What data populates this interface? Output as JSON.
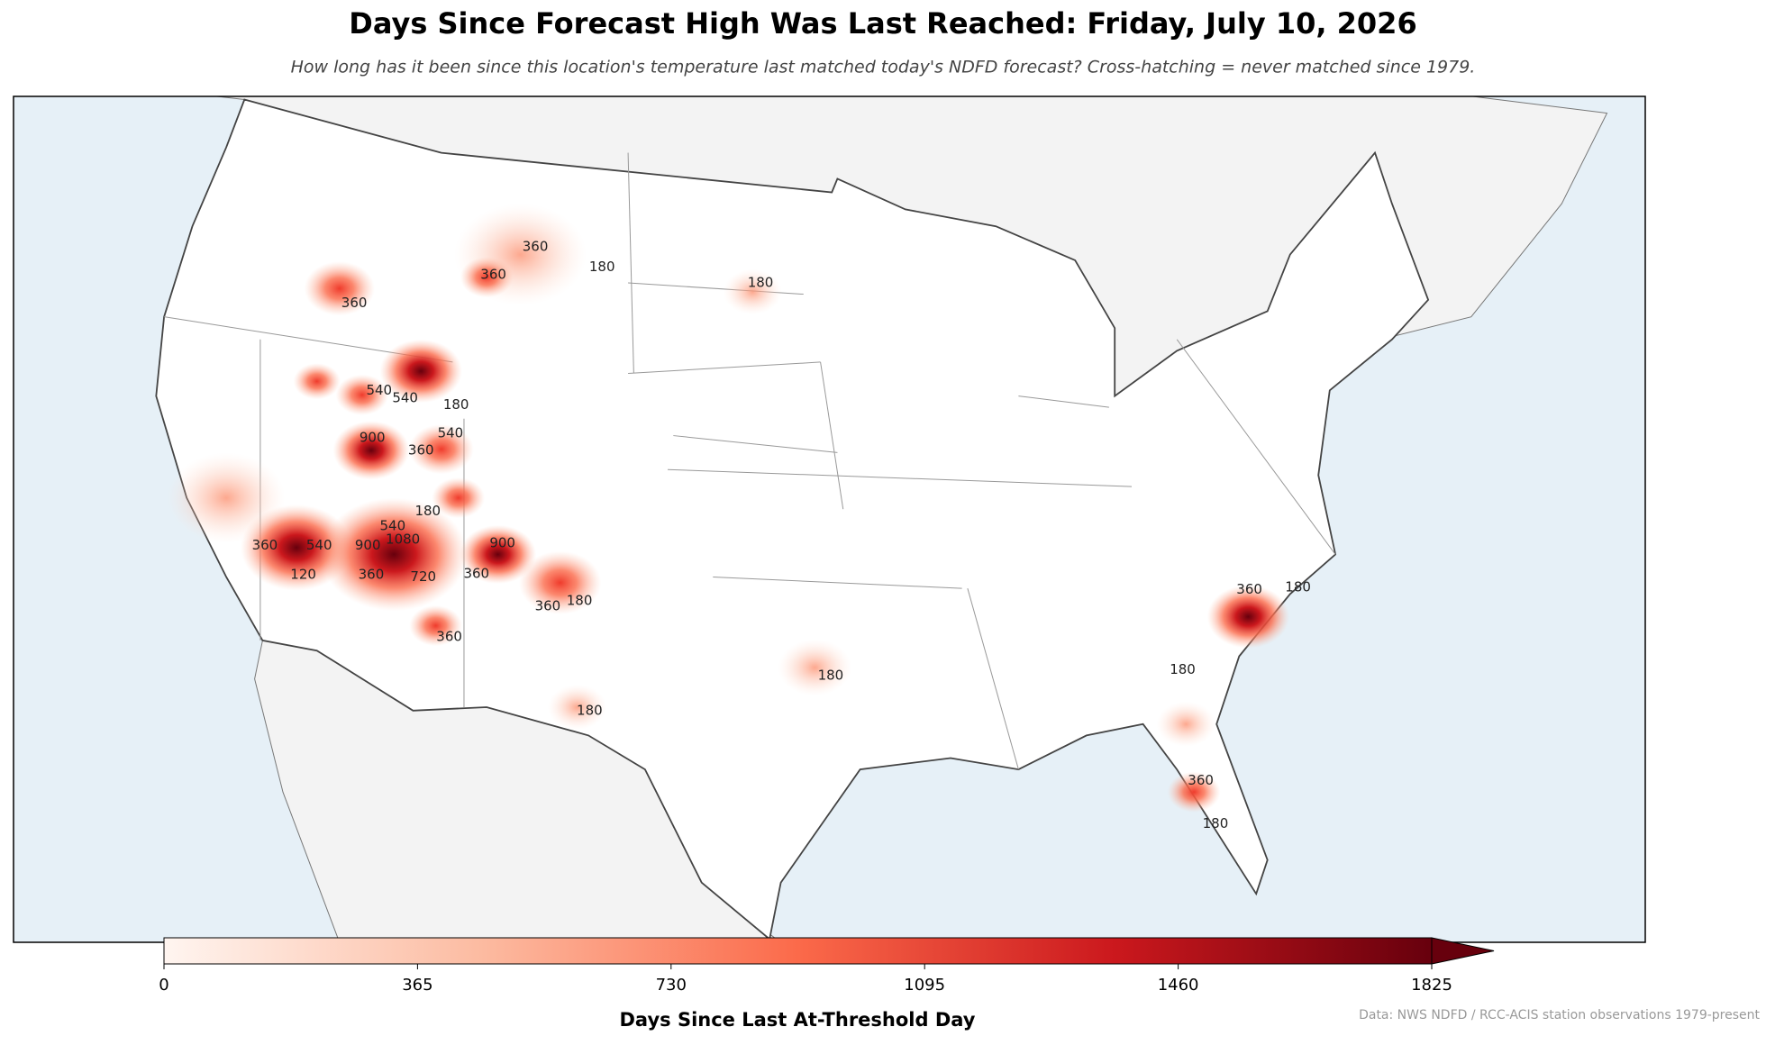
{
  "header": {
    "title": "Days Since Forecast High Was Last Reached: Friday, July 10, 2026",
    "subtitle": "How long has it been since this location's temperature last matched today's NDFD forecast? Cross-hatching = never matched since 1979."
  },
  "map": {
    "contour_labels": [
      360,
      180,
      360,
      180,
      360,
      540,
      540,
      180,
      540,
      360,
      900,
      180,
      540,
      1080,
      900,
      360,
      540,
      120,
      360,
      720,
      900,
      360,
      360,
      180,
      360,
      180,
      180,
      180,
      360,
      180,
      360,
      180
    ]
  },
  "colorbar": {
    "label": "Days Since Last At-Threshold Day",
    "lim": [
      0,
      1825
    ],
    "ticks": [
      0,
      365,
      730,
      1095,
      1460,
      1825
    ]
  },
  "footer": {
    "source": "Data: NWS NDFD / RCC-ACIS station observations 1979-present"
  }
}
